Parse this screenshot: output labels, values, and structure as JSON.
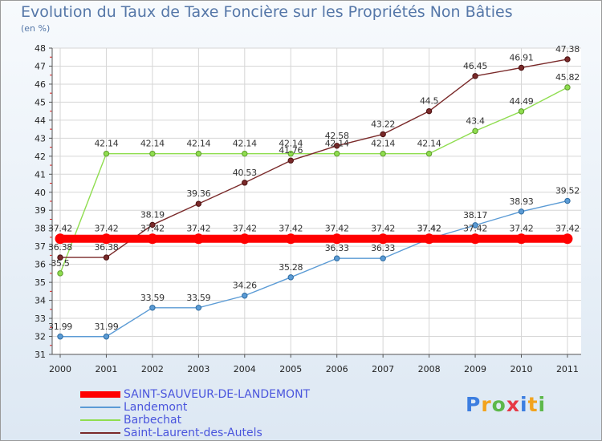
{
  "chart_data": {
    "type": "line",
    "title": "Evolution du Taux de Taxe Foncière sur les Propriétés Non Bâties",
    "unit_label": "(en %)",
    "x": [
      "2000",
      "2001",
      "2002",
      "2003",
      "2004",
      "2005",
      "2006",
      "2007",
      "2008",
      "2009",
      "2010",
      "2011"
    ],
    "ylim": [
      31,
      48
    ],
    "yticks": [
      "31",
      "32",
      "33",
      "34",
      "35",
      "36",
      "37",
      "38",
      "39",
      "40",
      "41",
      "42",
      "43",
      "44",
      "45",
      "46",
      "47",
      "48"
    ],
    "grid": true,
    "series": [
      {
        "name": "SAINT-SAUVEUR-DE-LANDEMONT",
        "color": "#ff0000",
        "values": [
          37.42,
          37.42,
          37.42,
          37.42,
          37.42,
          37.42,
          37.42,
          37.42,
          37.42,
          37.42,
          37.42,
          37.42
        ],
        "labels": [
          "37.42",
          "37.42",
          "37.42",
          "37.42",
          "37.42",
          "37.42",
          "37.42",
          "37.42",
          "37.42",
          "37.42",
          "37.42",
          "37.42"
        ]
      },
      {
        "name": "Landemont",
        "color": "#5b9bd5",
        "values": [
          31.99,
          31.99,
          33.59,
          33.59,
          34.26,
          35.28,
          36.33,
          36.33,
          37.42,
          38.17,
          38.93,
          39.52
        ],
        "labels": [
          "31.99",
          "31.99",
          "33.59",
          "33.59",
          "34.26",
          "35.28",
          "36.33",
          "36.33",
          "37.42",
          "38.17",
          "38.93",
          "39.52"
        ]
      },
      {
        "name": "Barbechat",
        "color": "#8fdd4f",
        "values": [
          35.5,
          42.14,
          42.14,
          42.14,
          42.14,
          42.14,
          42.14,
          42.14,
          42.14,
          43.4,
          44.49,
          45.82
        ],
        "labels": [
          "35.5",
          "42.14",
          "42.14",
          "42.14",
          "42.14",
          "42.14",
          "42.14",
          "42.14",
          "42.14",
          "43.4",
          "44.49",
          "45.82"
        ]
      },
      {
        "name": "Saint-Laurent-des-Autels",
        "color": "#7a2a2a",
        "values": [
          36.38,
          36.38,
          38.19,
          39.36,
          40.53,
          41.76,
          42.58,
          43.22,
          44.5,
          46.45,
          46.91,
          47.38
        ],
        "labels": [
          "36.38",
          "36.38",
          "38.19",
          "39.36",
          "40.53",
          "41.76",
          "42.58",
          "43.22",
          "44.5",
          "46.45",
          "46.91",
          "47.38"
        ]
      }
    ]
  },
  "logo": {
    "letters": [
      "P",
      "r",
      "o",
      "x",
      "i",
      "t",
      "i"
    ],
    "colors": [
      "#3c7ee0",
      "#f2a31d",
      "#5db84a",
      "#e63946",
      "#3c7ee0",
      "#f2a31d",
      "#5db84a"
    ]
  }
}
